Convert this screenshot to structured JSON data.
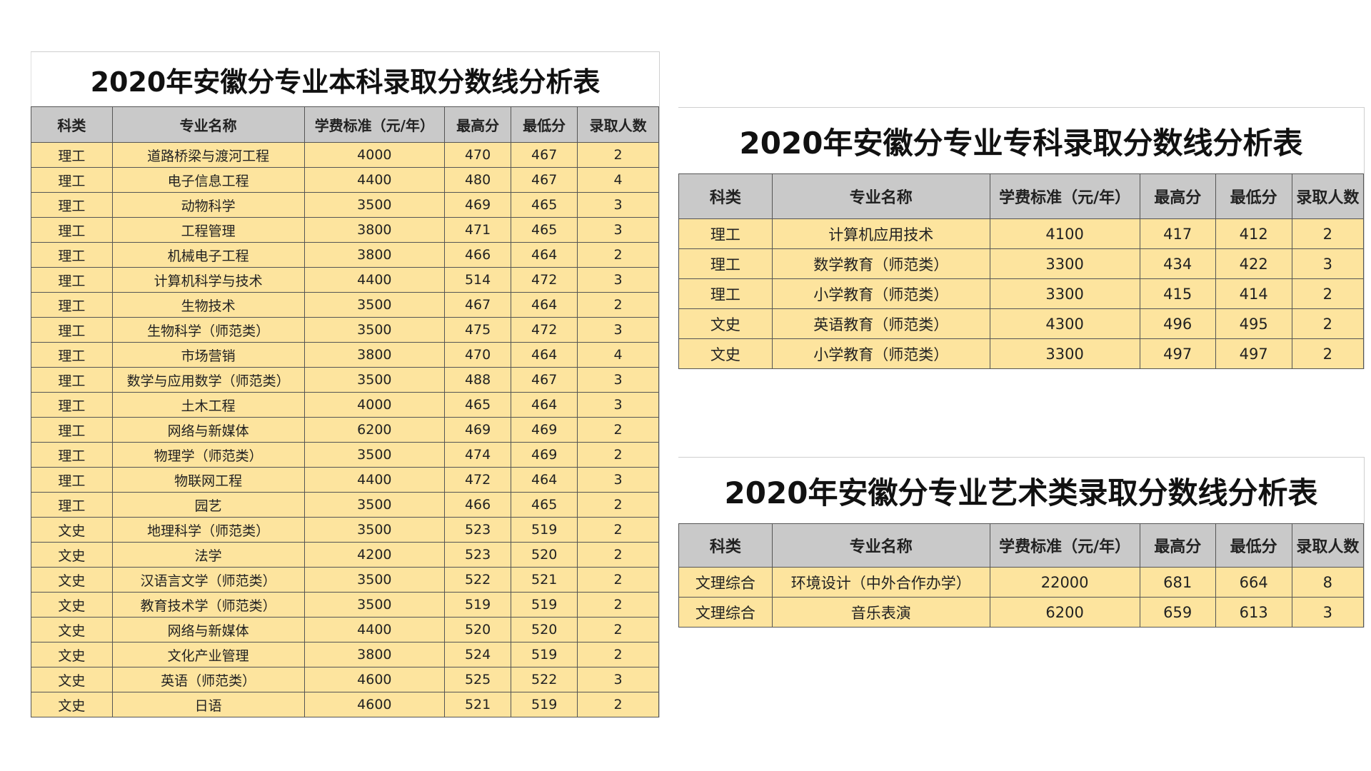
{
  "headers": [
    "科类",
    "专业名称",
    "学费标准（元/年）",
    "最高分",
    "最低分",
    "录取人数"
  ],
  "tables": [
    {
      "title": "2020年安徽分专业本科录取分数线分析表",
      "rows": [
        [
          "理工",
          "道路桥梁与渡河工程",
          "4000",
          "470",
          "467",
          "2"
        ],
        [
          "理工",
          "电子信息工程",
          "4400",
          "480",
          "467",
          "4"
        ],
        [
          "理工",
          "动物科学",
          "3500",
          "469",
          "465",
          "3"
        ],
        [
          "理工",
          "工程管理",
          "3800",
          "471",
          "465",
          "3"
        ],
        [
          "理工",
          "机械电子工程",
          "3800",
          "466",
          "464",
          "2"
        ],
        [
          "理工",
          "计算机科学与技术",
          "4400",
          "514",
          "472",
          "3"
        ],
        [
          "理工",
          "生物技术",
          "3500",
          "467",
          "464",
          "2"
        ],
        [
          "理工",
          "生物科学（师范类）",
          "3500",
          "475",
          "472",
          "3"
        ],
        [
          "理工",
          "市场营销",
          "3800",
          "470",
          "464",
          "4"
        ],
        [
          "理工",
          "数学与应用数学（师范类）",
          "3500",
          "488",
          "467",
          "3"
        ],
        [
          "理工",
          "土木工程",
          "4000",
          "465",
          "464",
          "3"
        ],
        [
          "理工",
          "网络与新媒体",
          "6200",
          "469",
          "469",
          "2"
        ],
        [
          "理工",
          "物理学（师范类）",
          "3500",
          "474",
          "469",
          "2"
        ],
        [
          "理工",
          "物联网工程",
          "4400",
          "472",
          "464",
          "3"
        ],
        [
          "理工",
          "园艺",
          "3500",
          "466",
          "465",
          "2"
        ],
        [
          "文史",
          "地理科学（师范类）",
          "3500",
          "523",
          "519",
          "2"
        ],
        [
          "文史",
          "法学",
          "4200",
          "523",
          "520",
          "2"
        ],
        [
          "文史",
          "汉语言文学（师范类）",
          "3500",
          "522",
          "521",
          "2"
        ],
        [
          "文史",
          "教育技术学（师范类）",
          "3500",
          "519",
          "519",
          "2"
        ],
        [
          "文史",
          "网络与新媒体",
          "4400",
          "520",
          "520",
          "2"
        ],
        [
          "文史",
          "文化产业管理",
          "3800",
          "524",
          "519",
          "2"
        ],
        [
          "文史",
          "英语（师范类）",
          "4600",
          "525",
          "522",
          "3"
        ],
        [
          "文史",
          "日语",
          "4600",
          "521",
          "519",
          "2"
        ]
      ]
    },
    {
      "title": "2020年安徽分专业专科录取分数线分析表",
      "rows": [
        [
          "理工",
          "计算机应用技术",
          "4100",
          "417",
          "412",
          "2"
        ],
        [
          "理工",
          "数学教育（师范类）",
          "3300",
          "434",
          "422",
          "3"
        ],
        [
          "理工",
          "小学教育（师范类）",
          "3300",
          "415",
          "414",
          "2"
        ],
        [
          "文史",
          "英语教育（师范类）",
          "4300",
          "496",
          "495",
          "2"
        ],
        [
          "文史",
          "小学教育（师范类）",
          "3300",
          "497",
          "497",
          "2"
        ]
      ]
    },
    {
      "title": "2020年安徽分专业艺术类录取分数线分析表",
      "rows": [
        [
          "文理综合",
          "环境设计（中外合作办学）",
          "22000",
          "681",
          "664",
          "8"
        ],
        [
          "文理综合",
          "音乐表演",
          "6200",
          "659",
          "613",
          "3"
        ]
      ]
    }
  ]
}
